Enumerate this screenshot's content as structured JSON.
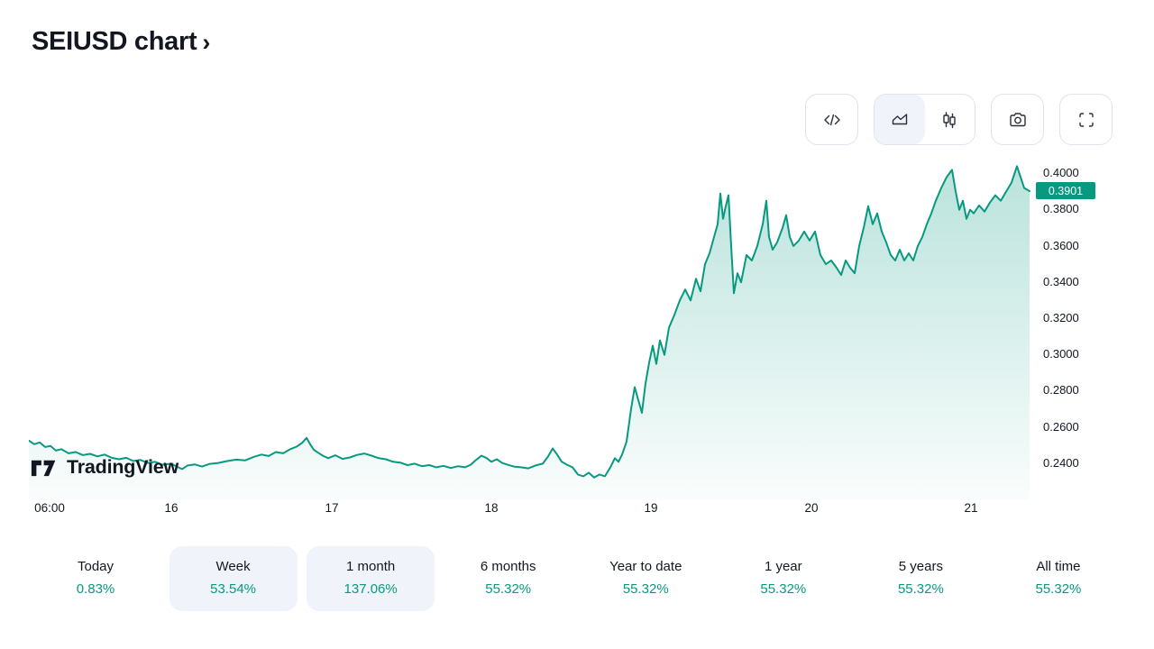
{
  "header": {
    "title": "SEIUSD chart",
    "chevron": "›"
  },
  "toolbar": {
    "buttons": [
      {
        "id": "source-code",
        "icon": "code-icon",
        "selected": false
      },
      {
        "id": "area-chart-type",
        "icon": "area-chart-icon",
        "selected": true
      },
      {
        "id": "candlestick-chart-type",
        "icon": "candlestick-icon",
        "selected": false
      },
      {
        "id": "snapshot",
        "icon": "camera-icon",
        "selected": false
      },
      {
        "id": "fullscreen",
        "icon": "fullscreen-icon",
        "selected": false
      }
    ]
  },
  "watermark": {
    "label": "TradingView"
  },
  "chart_data": {
    "type": "area",
    "symbol": "SEIUSD",
    "line_color": "#089981",
    "fill_top": "rgba(8,153,129,0.28)",
    "fill_bottom": "rgba(8,153,129,0.02)",
    "current_price": "0.3901",
    "current_price_value": 0.3901,
    "y_ticks": [
      "0.4000",
      "0.3800",
      "0.3600",
      "0.3400",
      "0.3200",
      "0.3000",
      "0.2800",
      "0.2600",
      "0.2400"
    ],
    "y_domain": [
      0.2196,
      0.406
    ],
    "x_domain": [
      0,
      1110
    ],
    "x_ticks": [
      {
        "label": "06:00",
        "x": 23
      },
      {
        "label": "16",
        "x": 158
      },
      {
        "label": "17",
        "x": 336
      },
      {
        "label": "18",
        "x": 513
      },
      {
        "label": "19",
        "x": 690
      },
      {
        "label": "20",
        "x": 868
      },
      {
        "label": "21",
        "x": 1045
      }
    ],
    "points": [
      [
        0,
        0.2525
      ],
      [
        6,
        0.2505
      ],
      [
        12,
        0.2515
      ],
      [
        18,
        0.249
      ],
      [
        24,
        0.2495
      ],
      [
        30,
        0.247
      ],
      [
        36,
        0.2478
      ],
      [
        44,
        0.2455
      ],
      [
        52,
        0.2462
      ],
      [
        60,
        0.2445
      ],
      [
        68,
        0.2452
      ],
      [
        76,
        0.2438
      ],
      [
        84,
        0.2448
      ],
      [
        92,
        0.243
      ],
      [
        100,
        0.2422
      ],
      [
        108,
        0.243
      ],
      [
        116,
        0.2412
      ],
      [
        124,
        0.2418
      ],
      [
        132,
        0.2402
      ],
      [
        140,
        0.2408
      ],
      [
        148,
        0.2392
      ],
      [
        158,
        0.2398
      ],
      [
        164,
        0.2382
      ],
      [
        170,
        0.2368
      ],
      [
        176,
        0.2388
      ],
      [
        184,
        0.2394
      ],
      [
        192,
        0.2382
      ],
      [
        200,
        0.2396
      ],
      [
        210,
        0.2402
      ],
      [
        220,
        0.2412
      ],
      [
        230,
        0.242
      ],
      [
        240,
        0.2416
      ],
      [
        250,
        0.2436
      ],
      [
        258,
        0.2448
      ],
      [
        266,
        0.244
      ],
      [
        274,
        0.2462
      ],
      [
        282,
        0.2455
      ],
      [
        290,
        0.2478
      ],
      [
        297,
        0.2492
      ],
      [
        303,
        0.2512
      ],
      [
        308,
        0.254
      ],
      [
        312,
        0.2505
      ],
      [
        316,
        0.2475
      ],
      [
        321,
        0.2458
      ],
      [
        326,
        0.2442
      ],
      [
        332,
        0.2428
      ],
      [
        340,
        0.2444
      ],
      [
        348,
        0.2424
      ],
      [
        356,
        0.2432
      ],
      [
        364,
        0.2446
      ],
      [
        372,
        0.2454
      ],
      [
        380,
        0.2442
      ],
      [
        388,
        0.2428
      ],
      [
        396,
        0.2422
      ],
      [
        404,
        0.2408
      ],
      [
        412,
        0.2404
      ],
      [
        420,
        0.239
      ],
      [
        428,
        0.2398
      ],
      [
        436,
        0.2384
      ],
      [
        444,
        0.239
      ],
      [
        452,
        0.2378
      ],
      [
        460,
        0.2386
      ],
      [
        468,
        0.2374
      ],
      [
        476,
        0.2384
      ],
      [
        484,
        0.2378
      ],
      [
        490,
        0.2392
      ],
      [
        496,
        0.2418
      ],
      [
        502,
        0.2442
      ],
      [
        508,
        0.2428
      ],
      [
        513,
        0.2408
      ],
      [
        519,
        0.2422
      ],
      [
        525,
        0.2402
      ],
      [
        531,
        0.2392
      ],
      [
        538,
        0.2382
      ],
      [
        546,
        0.2378
      ],
      [
        554,
        0.2372
      ],
      [
        562,
        0.2388
      ],
      [
        570,
        0.2398
      ],
      [
        576,
        0.2438
      ],
      [
        581,
        0.2482
      ],
      [
        586,
        0.2448
      ],
      [
        591,
        0.2408
      ],
      [
        597,
        0.2392
      ],
      [
        603,
        0.2378
      ],
      [
        609,
        0.2338
      ],
      [
        615,
        0.2328
      ],
      [
        621,
        0.2348
      ],
      [
        627,
        0.2322
      ],
      [
        633,
        0.2338
      ],
      [
        639,
        0.2328
      ],
      [
        645,
        0.2378
      ],
      [
        650,
        0.2428
      ],
      [
        654,
        0.2408
      ],
      [
        658,
        0.2448
      ],
      [
        663,
        0.252
      ],
      [
        668,
        0.27
      ],
      [
        672,
        0.282
      ],
      [
        676,
        0.2748
      ],
      [
        680,
        0.2678
      ],
      [
        684,
        0.284
      ],
      [
        688,
        0.2955
      ],
      [
        692,
        0.3048
      ],
      [
        696,
        0.2948
      ],
      [
        700,
        0.3078
      ],
      [
        705,
        0.2998
      ],
      [
        710,
        0.3148
      ],
      [
        716,
        0.3218
      ],
      [
        722,
        0.3298
      ],
      [
        728,
        0.3358
      ],
      [
        734,
        0.3298
      ],
      [
        740,
        0.3418
      ],
      [
        745,
        0.3348
      ],
      [
        750,
        0.3498
      ],
      [
        755,
        0.3558
      ],
      [
        760,
        0.3648
      ],
      [
        764,
        0.3718
      ],
      [
        767,
        0.3888
      ],
      [
        770,
        0.3748
      ],
      [
        773,
        0.3818
      ],
      [
        776,
        0.3878
      ],
      [
        779,
        0.3598
      ],
      [
        782,
        0.3338
      ],
      [
        786,
        0.3448
      ],
      [
        790,
        0.3398
      ],
      [
        796,
        0.3548
      ],
      [
        802,
        0.3518
      ],
      [
        808,
        0.3598
      ],
      [
        814,
        0.3718
      ],
      [
        818,
        0.3848
      ],
      [
        821,
        0.3648
      ],
      [
        825,
        0.3578
      ],
      [
        830,
        0.3618
      ],
      [
        836,
        0.3698
      ],
      [
        840,
        0.3768
      ],
      [
        844,
        0.3648
      ],
      [
        848,
        0.3598
      ],
      [
        854,
        0.3628
      ],
      [
        860,
        0.3678
      ],
      [
        866,
        0.3628
      ],
      [
        872,
        0.3678
      ],
      [
        878,
        0.3548
      ],
      [
        884,
        0.3498
      ],
      [
        890,
        0.3518
      ],
      [
        896,
        0.3478
      ],
      [
        901,
        0.3438
      ],
      [
        906,
        0.3518
      ],
      [
        911,
        0.3478
      ],
      [
        916,
        0.3448
      ],
      [
        921,
        0.3598
      ],
      [
        926,
        0.3698
      ],
      [
        931,
        0.3818
      ],
      [
        936,
        0.3718
      ],
      [
        941,
        0.3778
      ],
      [
        946,
        0.3678
      ],
      [
        951,
        0.3618
      ],
      [
        956,
        0.3548
      ],
      [
        961,
        0.3518
      ],
      [
        966,
        0.3578
      ],
      [
        971,
        0.3518
      ],
      [
        976,
        0.3558
      ],
      [
        981,
        0.3518
      ],
      [
        986,
        0.3598
      ],
      [
        991,
        0.3648
      ],
      [
        996,
        0.3718
      ],
      [
        1001,
        0.3778
      ],
      [
        1006,
        0.3848
      ],
      [
        1012,
        0.3918
      ],
      [
        1018,
        0.3978
      ],
      [
        1024,
        0.4018
      ],
      [
        1028,
        0.3898
      ],
      [
        1032,
        0.3798
      ],
      [
        1036,
        0.3848
      ],
      [
        1040,
        0.3748
      ],
      [
        1044,
        0.3798
      ],
      [
        1048,
        0.3778
      ],
      [
        1054,
        0.3822
      ],
      [
        1060,
        0.3788
      ],
      [
        1066,
        0.3838
      ],
      [
        1072,
        0.3878
      ],
      [
        1078,
        0.3848
      ],
      [
        1084,
        0.3898
      ],
      [
        1090,
        0.3948
      ],
      [
        1096,
        0.4038
      ],
      [
        1100,
        0.3978
      ],
      [
        1104,
        0.3918
      ],
      [
        1110,
        0.3901
      ]
    ]
  },
  "ranges": {
    "items": [
      {
        "label": "Today",
        "value": "0.83%",
        "highlighted": false
      },
      {
        "label": "Week",
        "value": "53.54%",
        "highlighted": true
      },
      {
        "label": "1 month",
        "value": "137.06%",
        "highlighted": true
      },
      {
        "label": "6 months",
        "value": "55.32%",
        "highlighted": false
      },
      {
        "label": "Year to date",
        "value": "55.32%",
        "highlighted": false
      },
      {
        "label": "1 year",
        "value": "55.32%",
        "highlighted": false
      },
      {
        "label": "5 years",
        "value": "55.32%",
        "highlighted": false
      },
      {
        "label": "All time",
        "value": "55.32%",
        "highlighted": false
      }
    ]
  }
}
